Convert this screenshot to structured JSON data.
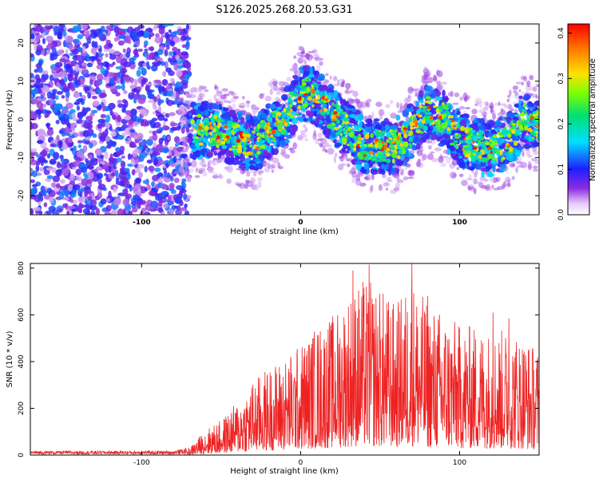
{
  "title": "S126.2025.268.20.53.G31",
  "colors": {
    "snr_line": "#ee2222",
    "frame": "#000000",
    "background": "#ffffff"
  },
  "chart_data": [
    {
      "type": "heatmap",
      "xlabel": "Height of straight line (km)",
      "ylabel": "Frequency (Hz)",
      "xlim": [
        -170,
        150
      ],
      "ylim": [
        -25,
        25
      ],
      "x_ticks": [
        -100,
        0,
        100
      ],
      "x_tick_labels": [
        "-100",
        "0",
        "100"
      ],
      "y_ticks": [
        -20,
        -10,
        0,
        10,
        20
      ],
      "y_tick_labels": [
        "-20",
        "-10",
        "0",
        "10",
        "20"
      ],
      "colorbar": {
        "label": "Normalized spectral amplitude",
        "range": [
          0.0,
          0.42
        ],
        "ticks": [
          0.0,
          0.1,
          0.2,
          0.3,
          0.4
        ],
        "tick_labels": [
          "0.0",
          "0.1",
          "0.2",
          "0.3",
          "0.4"
        ]
      },
      "noise_region_x": [
        -170,
        -70
      ],
      "ridge_center_hz": [
        {
          "x": -70,
          "f": -3
        },
        {
          "x": -55,
          "f": -3
        },
        {
          "x": -40,
          "f": -5
        },
        {
          "x": -30,
          "f": -7
        },
        {
          "x": -20,
          "f": -3
        },
        {
          "x": -10,
          "f": 0
        },
        {
          "x": 0,
          "f": 7
        },
        {
          "x": 10,
          "f": 6
        },
        {
          "x": 20,
          "f": 1
        },
        {
          "x": 30,
          "f": -3
        },
        {
          "x": 40,
          "f": -7
        },
        {
          "x": 50,
          "f": -7
        },
        {
          "x": 60,
          "f": -7
        },
        {
          "x": 70,
          "f": -3
        },
        {
          "x": 80,
          "f": 2
        },
        {
          "x": 90,
          "f": 0
        },
        {
          "x": 100,
          "f": -5
        },
        {
          "x": 110,
          "f": -7
        },
        {
          "x": 120,
          "f": -8
        },
        {
          "x": 130,
          "f": -6
        },
        {
          "x": 140,
          "f": 0
        },
        {
          "x": 150,
          "f": -2
        }
      ]
    },
    {
      "type": "line",
      "xlabel": "Height of straight line (km)",
      "ylabel": "SNR (10 * v/v)",
      "xlim": [
        -170,
        150
      ],
      "ylim": [
        0,
        820
      ],
      "x_ticks": [
        -100,
        0,
        100
      ],
      "x_tick_labels": [
        "-100",
        "0",
        "100"
      ],
      "y_ticks": [
        0,
        200,
        400,
        600,
        800
      ],
      "y_tick_labels": [
        "0",
        "200",
        "400",
        "600",
        "800"
      ],
      "envelope": [
        {
          "x": -170,
          "snr": 15
        },
        {
          "x": -80,
          "snr": 15
        },
        {
          "x": -70,
          "snr": 30
        },
        {
          "x": -60,
          "snr": 110
        },
        {
          "x": -50,
          "snr": 150
        },
        {
          "x": -40,
          "snr": 230
        },
        {
          "x": -30,
          "snr": 320
        },
        {
          "x": -20,
          "snr": 380
        },
        {
          "x": -10,
          "snr": 420
        },
        {
          "x": 0,
          "snr": 480
        },
        {
          "x": 10,
          "snr": 560
        },
        {
          "x": 20,
          "snr": 600
        },
        {
          "x": 30,
          "snr": 700
        },
        {
          "x": 40,
          "snr": 760
        },
        {
          "x": 50,
          "snr": 720
        },
        {
          "x": 60,
          "snr": 650
        },
        {
          "x": 70,
          "snr": 760
        },
        {
          "x": 80,
          "snr": 650
        },
        {
          "x": 90,
          "snr": 620
        },
        {
          "x": 100,
          "snr": 560
        },
        {
          "x": 110,
          "snr": 560
        },
        {
          "x": 120,
          "snr": 540
        },
        {
          "x": 130,
          "snr": 540
        },
        {
          "x": 140,
          "snr": 520
        },
        {
          "x": 150,
          "snr": 450
        }
      ],
      "peaks": [
        {
          "x": 33,
          "snr": 790
        },
        {
          "x": 43,
          "snr": 815
        },
        {
          "x": 70,
          "snr": 820
        },
        {
          "x": 80,
          "snr": 680
        },
        {
          "x": 121,
          "snr": 610
        },
        {
          "x": 131,
          "snr": 585
        }
      ]
    }
  ]
}
